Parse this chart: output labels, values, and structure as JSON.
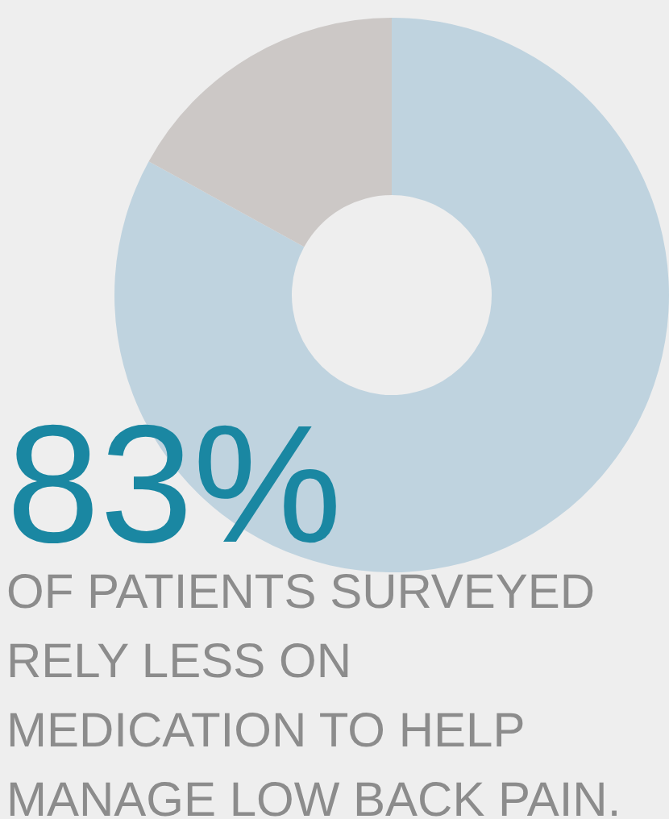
{
  "chart_data": {
    "type": "donut",
    "categories": [
      null,
      null
    ],
    "values": [
      83,
      17
    ],
    "colors": [
      "#bfd3df",
      "#ccc8c6"
    ],
    "value_labels": [
      "83%",
      null
    ],
    "annotations": [
      "OF PATIENTS SURVEYED RELY LESS ON MEDICATION TO HELP MANAGE LOW BACK PAIN."
    ]
  }
}
